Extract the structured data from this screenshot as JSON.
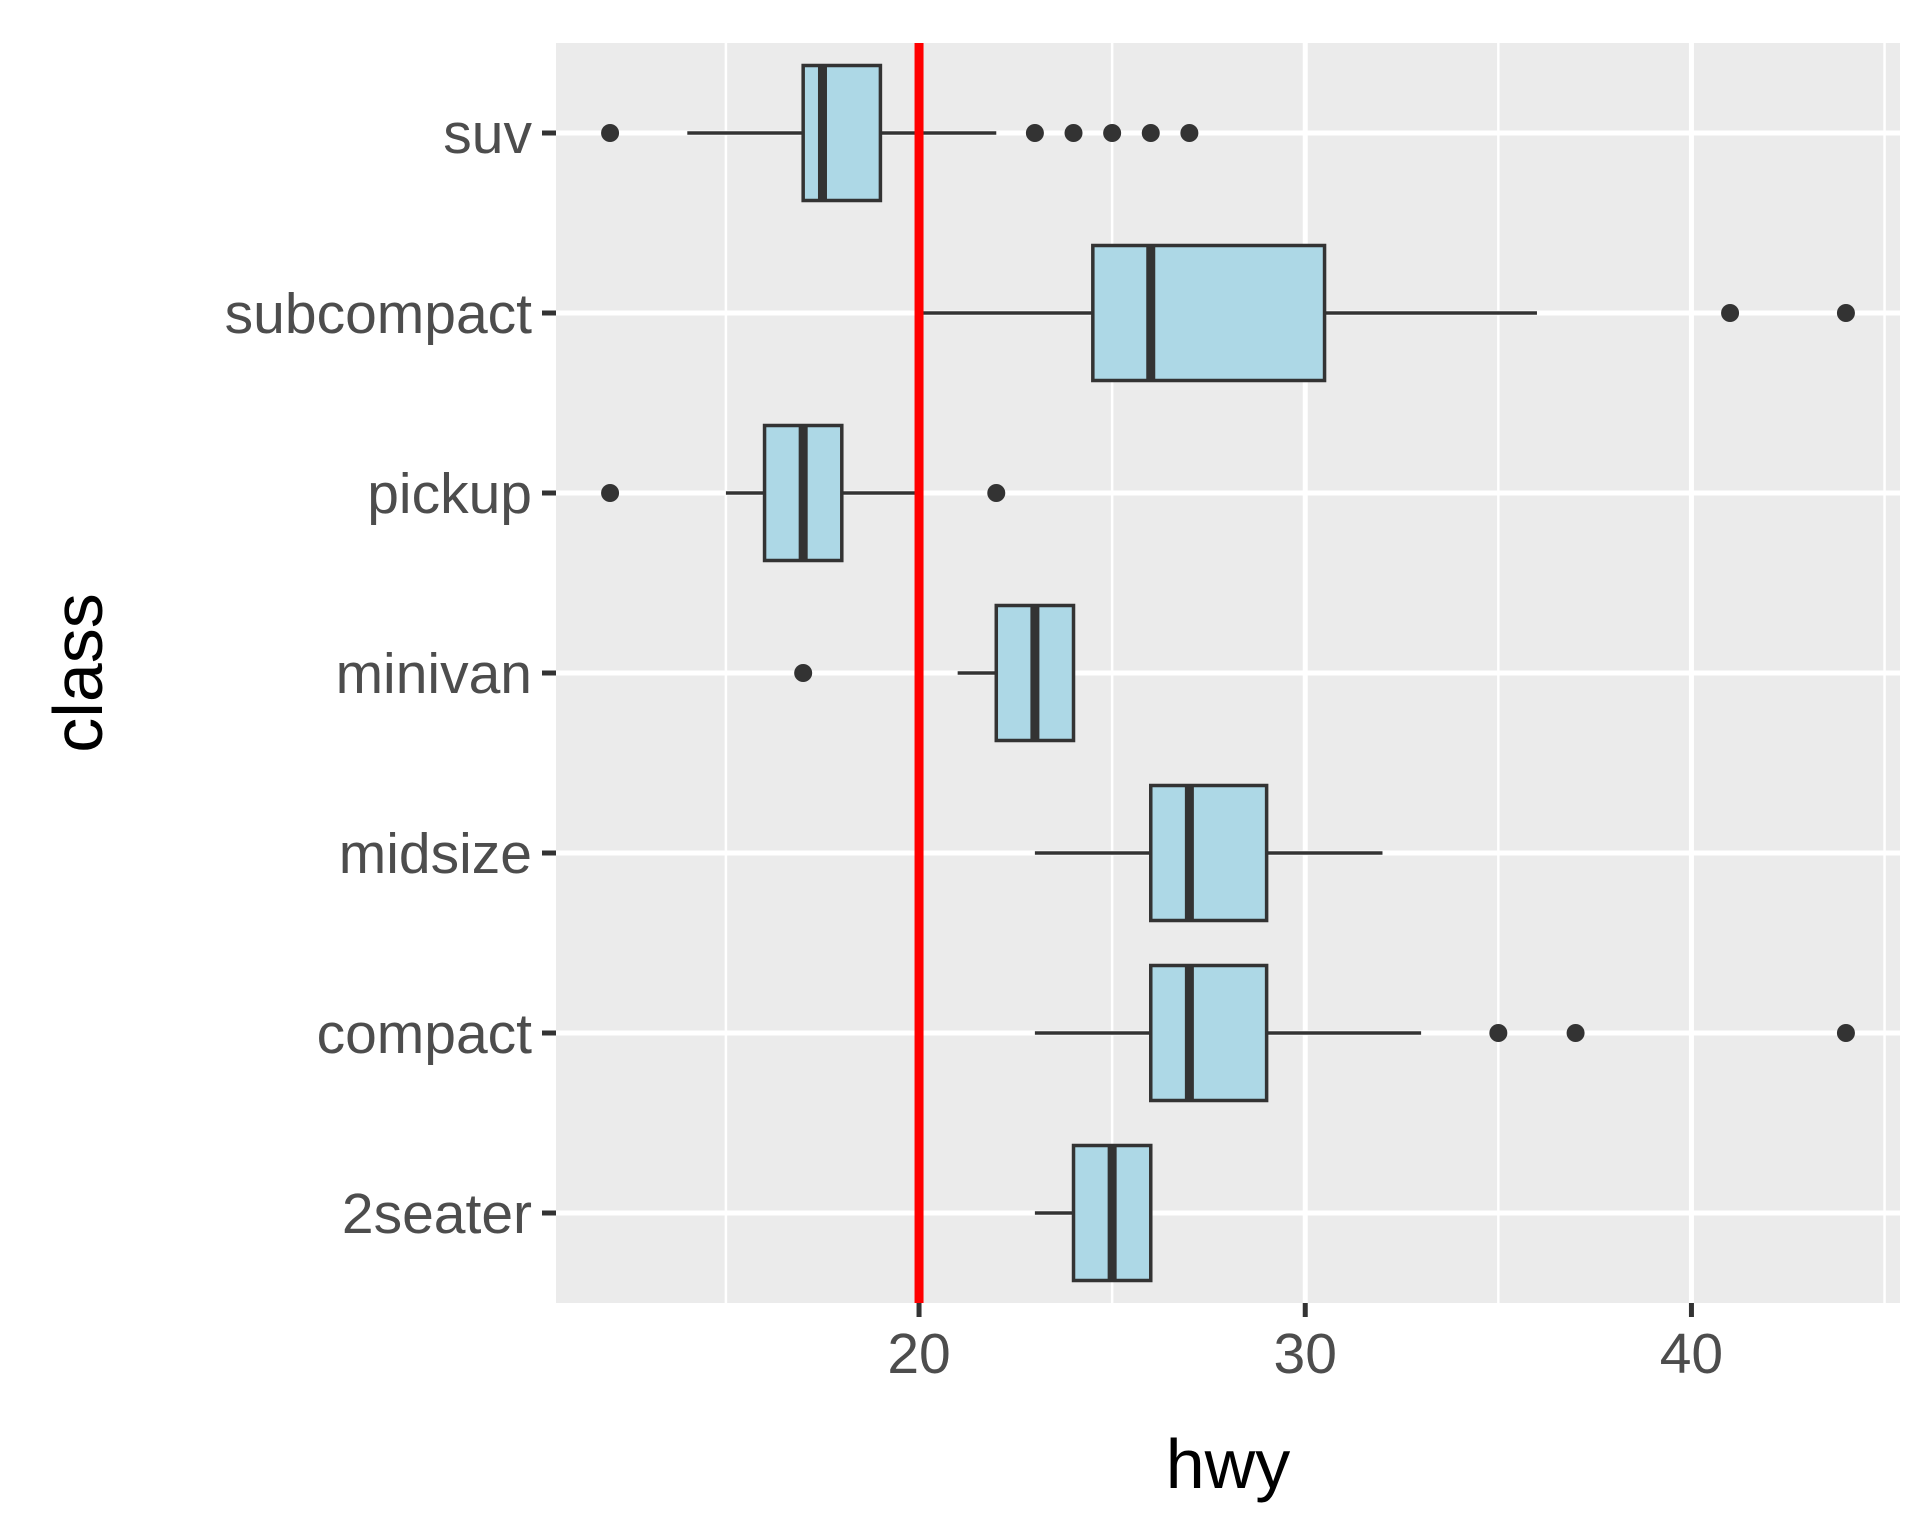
{
  "chart_data": {
    "type": "boxplot",
    "orientation": "horizontal",
    "xlabel": "hwy",
    "ylabel": "class",
    "xlim": [
      10.6,
      45.4
    ],
    "x_ticks": [
      20,
      30,
      40
    ],
    "grid": true,
    "reference_line": {
      "x": 20,
      "color": "#ff0000"
    },
    "box_fill": "#add8e6",
    "box_stroke": "#333333",
    "panel_background": "#ebebeb",
    "categories": [
      "2seater",
      "compact",
      "midsize",
      "minivan",
      "pickup",
      "subcompact",
      "suv"
    ],
    "series": [
      {
        "category": "2seater",
        "min": 23,
        "q1": 24,
        "median": 25,
        "q3": 26,
        "max": 26,
        "outliers": []
      },
      {
        "category": "compact",
        "min": 23,
        "q1": 26,
        "median": 27,
        "q3": 29,
        "max": 33,
        "outliers": [
          35,
          37,
          44
        ]
      },
      {
        "category": "midsize",
        "min": 23,
        "q1": 26,
        "median": 27,
        "q3": 29,
        "max": 32,
        "outliers": []
      },
      {
        "category": "minivan",
        "min": 21,
        "q1": 22,
        "median": 23,
        "q3": 24,
        "max": 24,
        "outliers": [
          17
        ]
      },
      {
        "category": "pickup",
        "min": 15,
        "q1": 16,
        "median": 17,
        "q3": 18,
        "max": 20,
        "outliers": [
          12,
          22
        ]
      },
      {
        "category": "subcompact",
        "min": 20,
        "q1": 24.5,
        "median": 26,
        "q3": 30.5,
        "max": 36,
        "outliers": [
          41,
          44
        ]
      },
      {
        "category": "suv",
        "min": 14,
        "q1": 17,
        "median": 17.5,
        "q3": 19,
        "max": 22,
        "outliers": [
          12,
          23,
          24,
          25,
          26,
          27
        ]
      }
    ]
  }
}
